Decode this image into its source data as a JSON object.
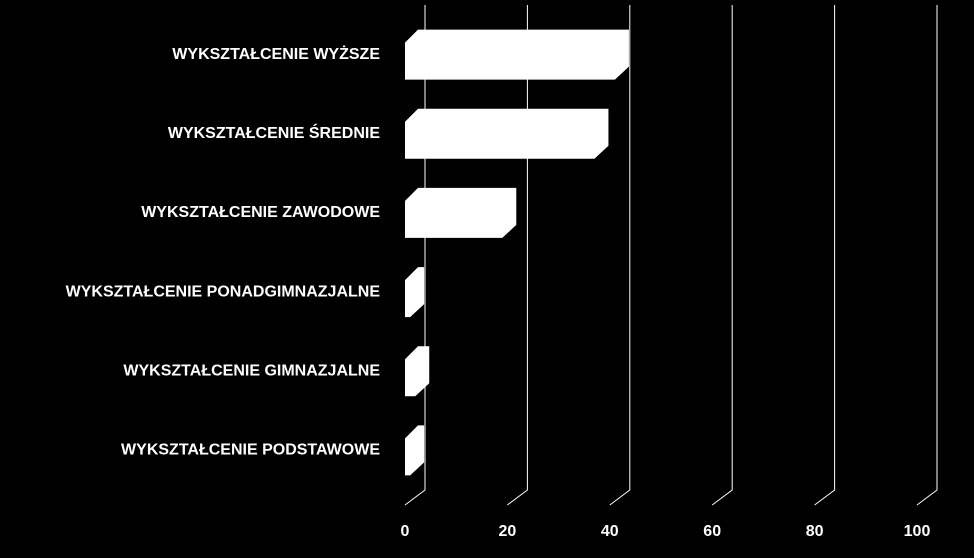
{
  "chart_data": {
    "type": "bar",
    "orientation": "horizontal",
    "categories": [
      "WYKSZTAŁCENIE WYŻSZE",
      "WYKSZTAŁCENIE ŚREDNIE",
      "WYKSZTAŁCENIE ZAWODOWE",
      "WYKSZTAŁCENIE PONADGIMNAZJALNE",
      "WYKSZTAŁCENIE GIMNAZJALNE",
      "WYKSZTAŁCENIE PODSTAWOWE"
    ],
    "values": [
      41,
      37,
      19,
      1,
      2,
      1
    ],
    "color": "#ffffff",
    "xlim": [
      0,
      100
    ],
    "xticks": [
      0,
      20,
      40,
      60,
      80,
      100
    ],
    "grid": true
  }
}
